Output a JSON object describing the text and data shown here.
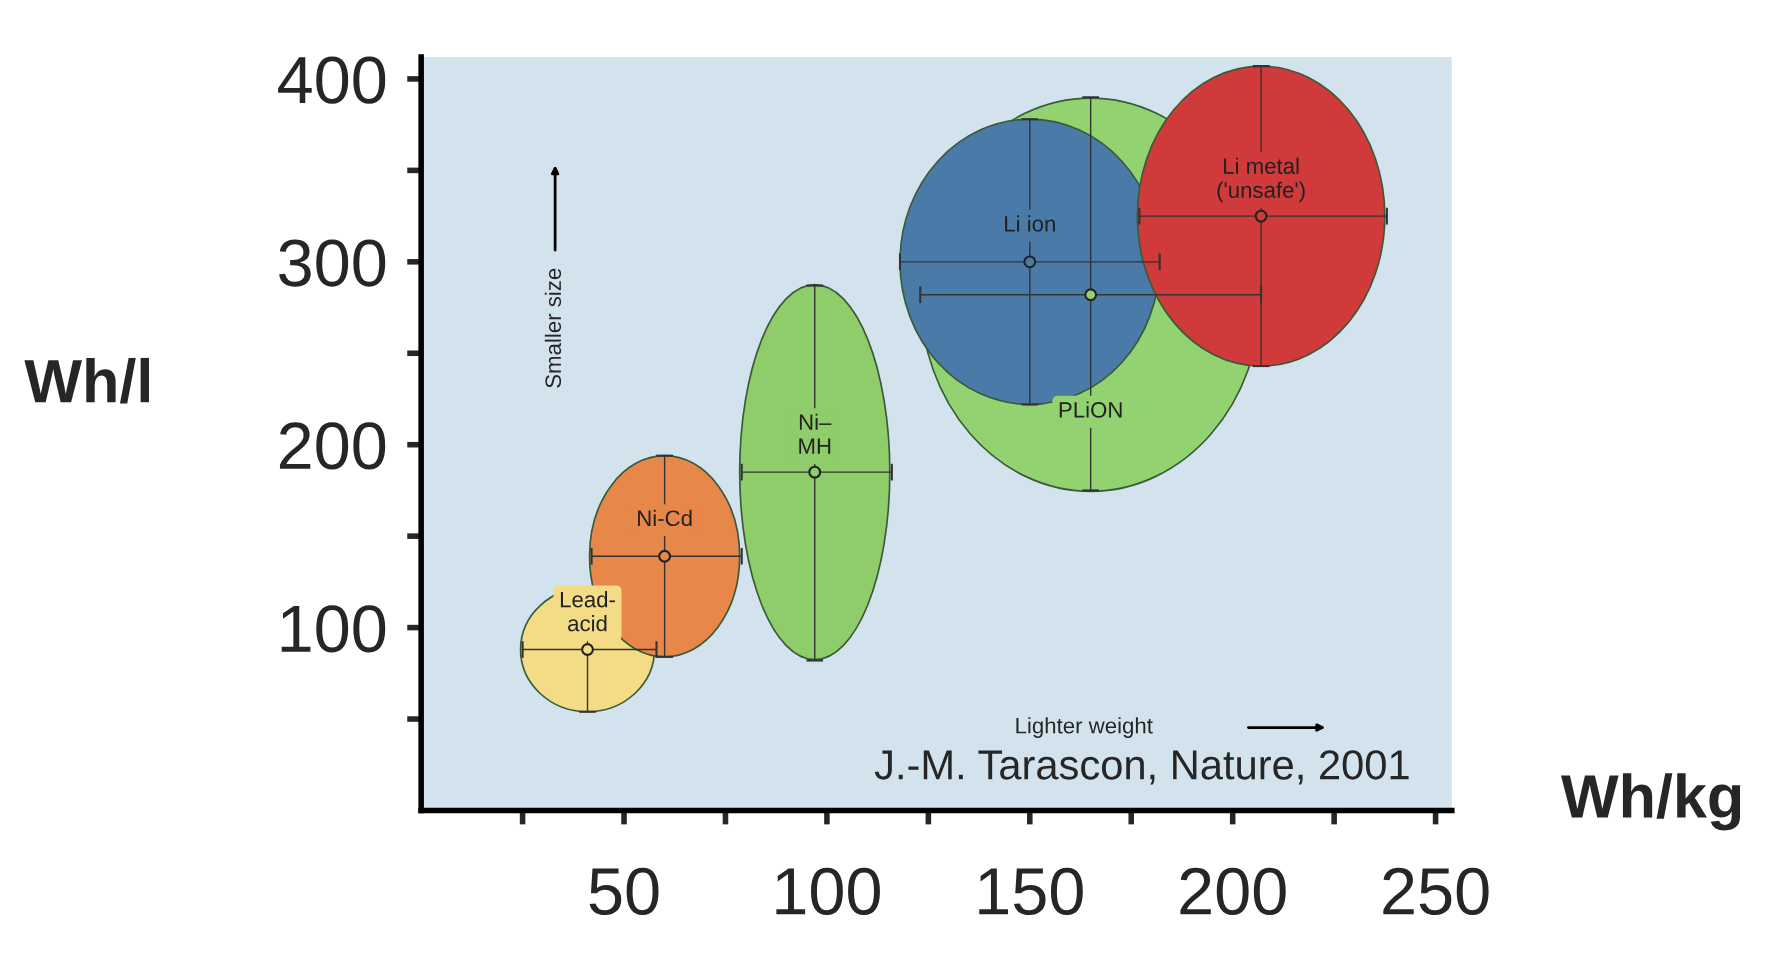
{
  "chart_data": {
    "type": "scatter",
    "xlabel": "Wh/kg",
    "ylabel": "Wh/l",
    "x": [
      41,
      60,
      97,
      165,
      150,
      207
    ],
    "series": [
      {
        "name": "Lead-\nacid",
        "color": "#f3dc85",
        "values": [
          88,
          null,
          null,
          null,
          null,
          null
        ],
        "xerrors": [
          [
            25,
            58
          ],
          null,
          null,
          null,
          null,
          null
        ],
        "errors": [
          [
            54,
            122
          ],
          null,
          null,
          null,
          null,
          null
        ]
      },
      {
        "name": "Ni-Cd",
        "color": "#e8874a",
        "values": [
          null,
          139,
          null,
          null,
          null,
          null
        ],
        "xerrors": [
          null,
          [
            42,
            79
          ],
          null,
          null,
          null,
          null
        ],
        "errors": [
          null,
          [
            84,
            194
          ],
          null,
          null,
          null,
          null
        ]
      },
      {
        "name": "Ni–\nMH",
        "color": "#8fcc6a",
        "values": [
          null,
          null,
          185,
          null,
          null,
          null
        ],
        "xerrors": [
          null,
          null,
          [
            79,
            116
          ],
          null,
          null,
          null
        ],
        "errors": [
          null,
          null,
          [
            82,
            287
          ],
          null,
          null,
          null
        ]
      },
      {
        "name": "PLiON",
        "color": "#93d271",
        "values": [
          null,
          null,
          null,
          282,
          null,
          null
        ],
        "xerrors": [
          null,
          null,
          null,
          [
            123,
            207
          ],
          null,
          null
        ],
        "errors": [
          null,
          null,
          null,
          [
            175,
            390
          ],
          null,
          null
        ]
      },
      {
        "name": "Li ion",
        "color": "#4a7aa8",
        "values": [
          null,
          null,
          null,
          null,
          300,
          null
        ],
        "xerrors": [
          null,
          null,
          null,
          null,
          [
            118,
            182
          ],
          null
        ],
        "errors": [
          null,
          null,
          null,
          null,
          [
            222,
            378
          ],
          null
        ]
      },
      {
        "name": "Li metal\n('unsafe')",
        "color": "#d03a3a",
        "values": [
          null,
          null,
          null,
          null,
          null,
          325
        ],
        "xerrors": [
          null,
          null,
          null,
          null,
          null,
          [
            177,
            238
          ]
        ],
        "errors": [
          null,
          null,
          null,
          null,
          null,
          [
            243,
            407
          ]
        ]
      }
    ],
    "xlim": [
      0,
      254
    ],
    "ylim": [
      0,
      412
    ],
    "xticks": [
      {
        "value": 25,
        "label": null
      },
      50,
      {
        "value": 75,
        "label": null
      },
      100,
      {
        "value": 125,
        "label": null
      },
      150,
      {
        "value": 175,
        "label": null
      },
      200,
      {
        "value": 225,
        "label": null
      },
      250
    ],
    "yticks": [
      {
        "value": 50,
        "label": null
      },
      100,
      {
        "value": 150,
        "label": null
      },
      200,
      {
        "value": 250,
        "label": null
      },
      300,
      {
        "value": 350,
        "label": null
      },
      400
    ],
    "annotations": [
      "Smaller size",
      "Lighter weight",
      "J.-M. Tarascon, Nature, 2001"
    ],
    "grid": false,
    "legend": false
  }
}
